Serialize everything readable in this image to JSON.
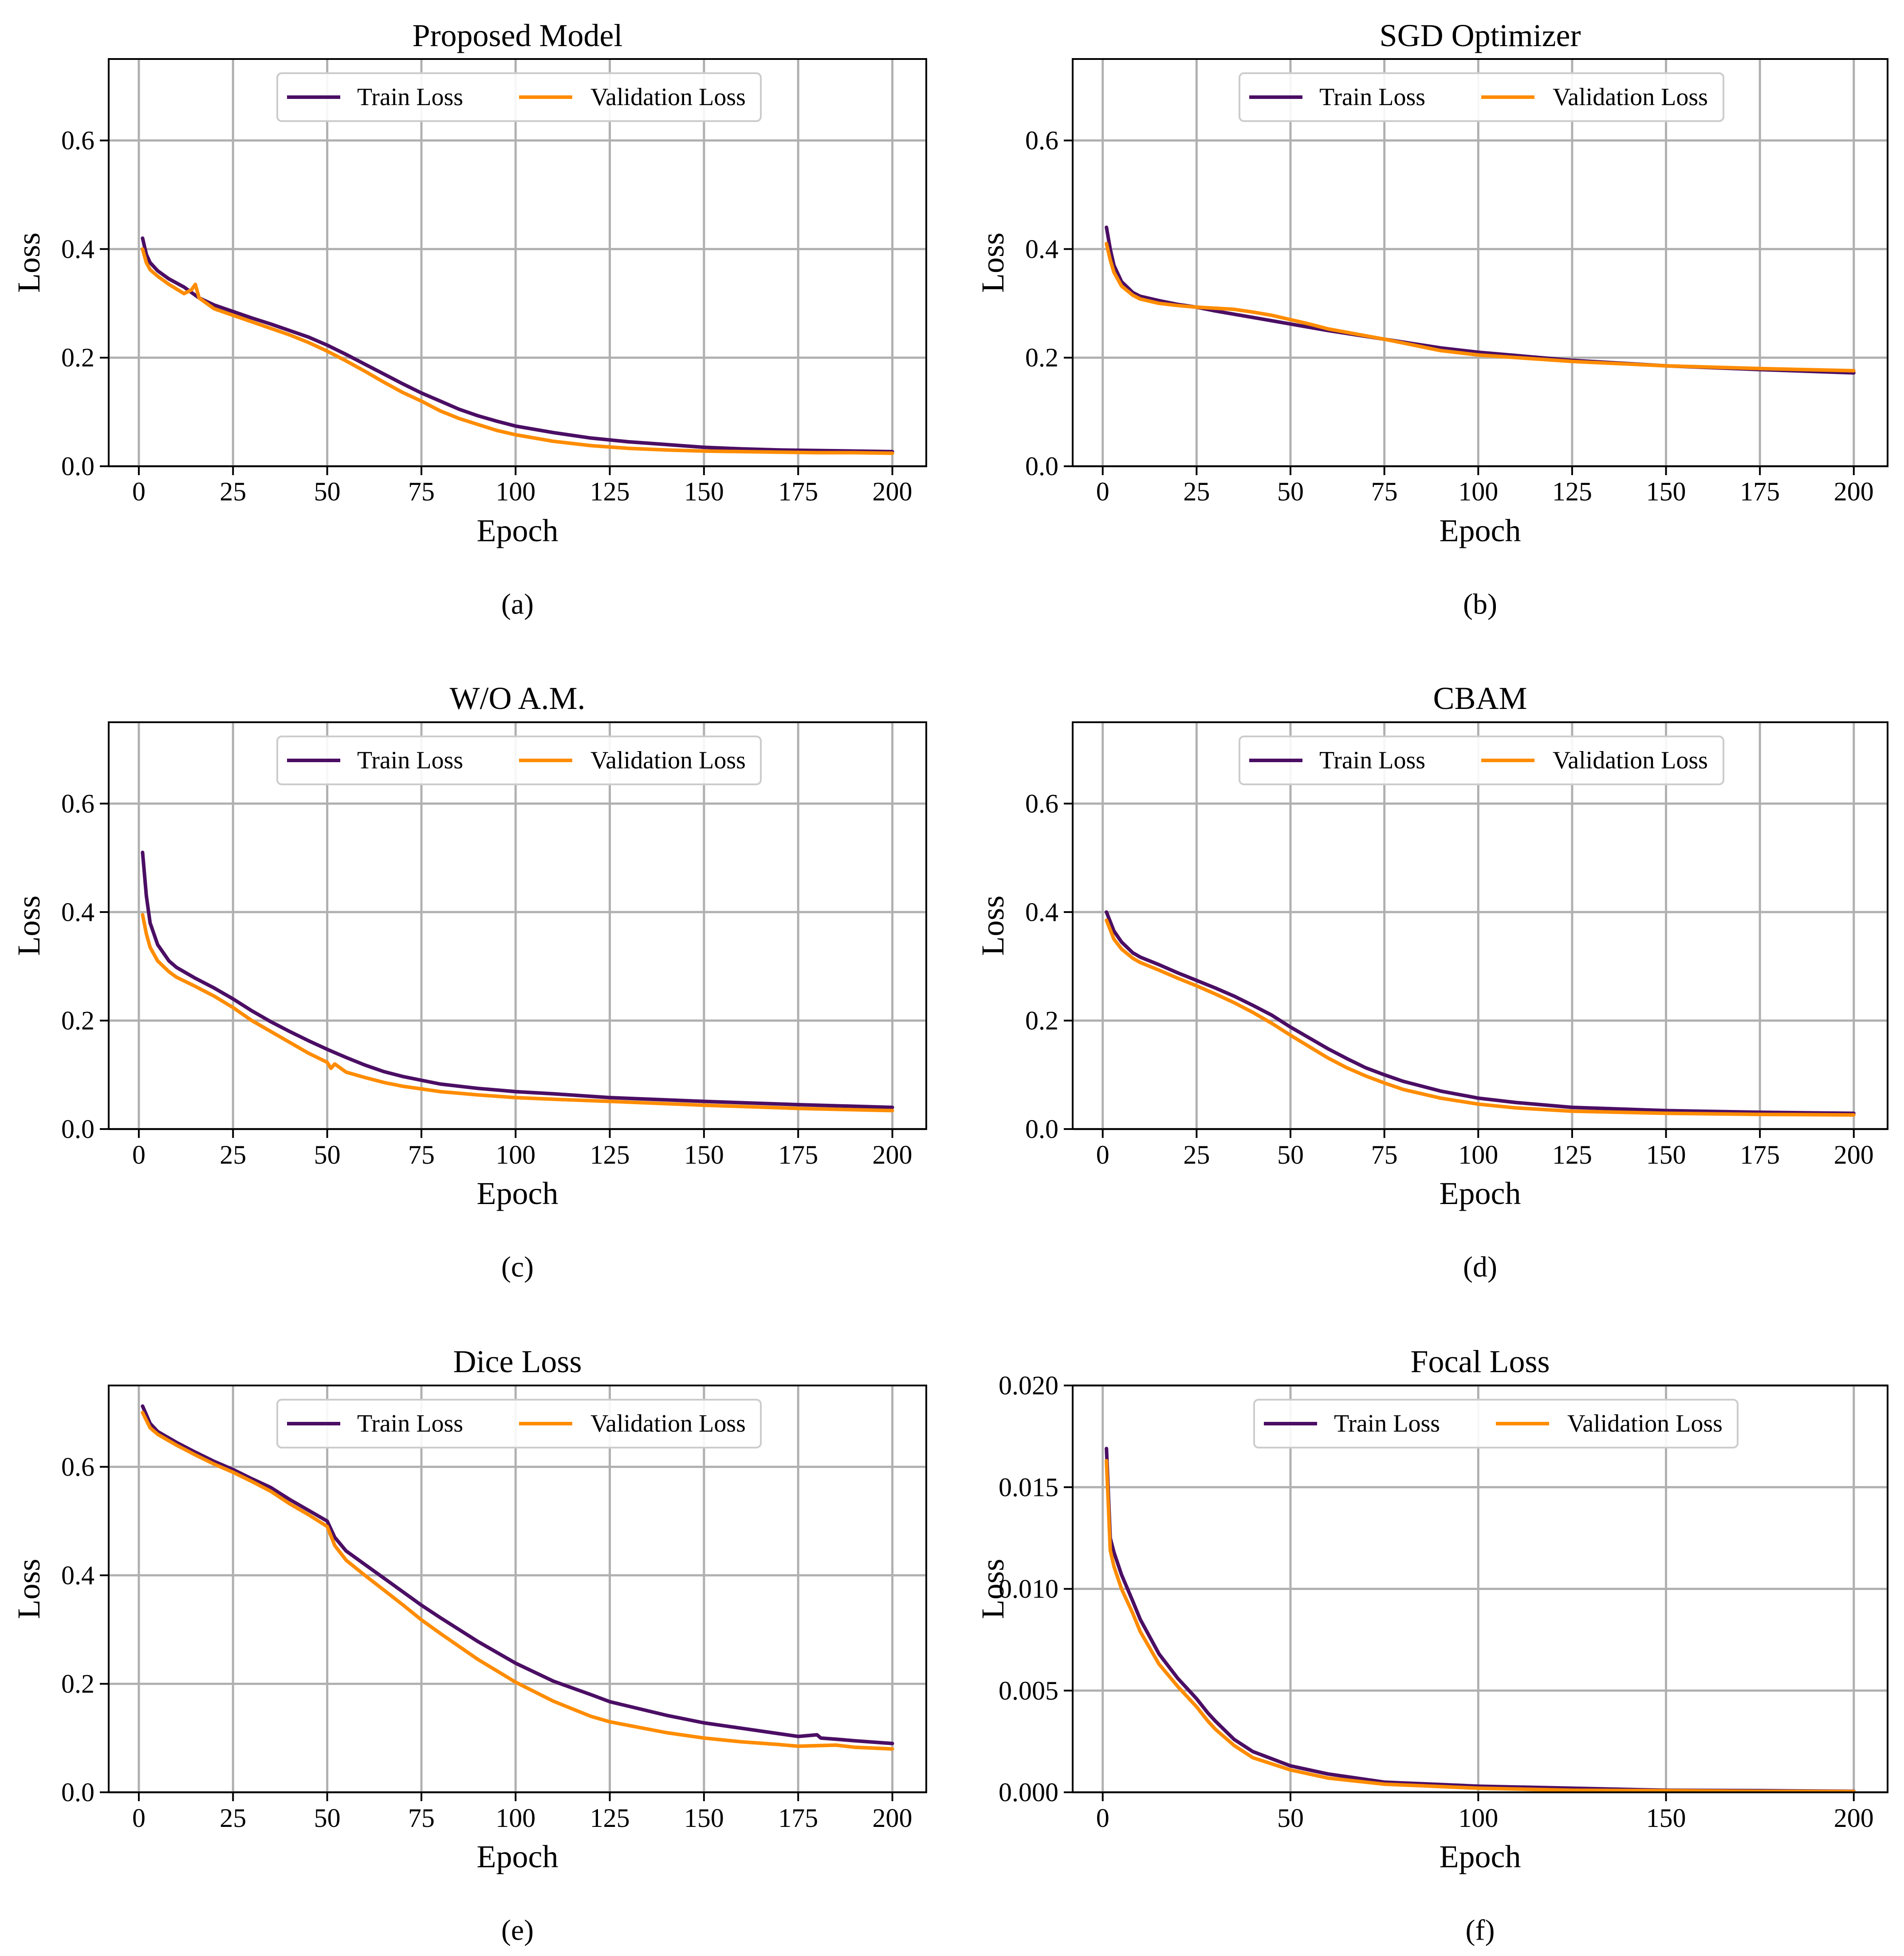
{
  "colors": {
    "train": "#4B0E64",
    "validation": "#FF8C00",
    "grid": "#B0B0B0",
    "axis": "#000000"
  },
  "legend": {
    "train": "Train Loss",
    "validation": "Validation Loss"
  },
  "chart_data": [
    {
      "id": "a",
      "type": "line",
      "title": "Proposed Model",
      "caption": "(a)",
      "xlabel": "Epoch",
      "ylabel": "Loss",
      "xlim": [
        -8,
        209
      ],
      "ylim": [
        0,
        0.75
      ],
      "xticks": [
        0,
        25,
        50,
        75,
        100,
        125,
        150,
        175,
        200
      ],
      "yticks": [
        0.0,
        0.2,
        0.4,
        0.6
      ],
      "ytick_labels": [
        "0.0",
        "0.2",
        "0.4",
        "0.6"
      ],
      "grid": true,
      "legend_position": "upper center",
      "series": [
        {
          "name": "Train Loss",
          "x": [
            1,
            2,
            3,
            5,
            8,
            12,
            16,
            20,
            25,
            30,
            35,
            40,
            45,
            50,
            55,
            60,
            65,
            70,
            75,
            80,
            85,
            90,
            95,
            100,
            110,
            120,
            130,
            140,
            150,
            160,
            170,
            180,
            190,
            200
          ],
          "y": [
            0.42,
            0.39,
            0.375,
            0.36,
            0.345,
            0.33,
            0.31,
            0.297,
            0.285,
            0.273,
            0.262,
            0.25,
            0.238,
            0.223,
            0.206,
            0.188,
            0.17,
            0.152,
            0.135,
            0.12,
            0.105,
            0.093,
            0.083,
            0.074,
            0.062,
            0.052,
            0.045,
            0.04,
            0.035,
            0.032,
            0.03,
            0.029,
            0.028,
            0.027
          ]
        },
        {
          "name": "Validation Loss",
          "x": [
            1,
            2,
            3,
            5,
            8,
            12,
            14,
            15,
            16,
            20,
            25,
            30,
            35,
            40,
            45,
            50,
            55,
            60,
            65,
            70,
            75,
            80,
            85,
            90,
            95,
            100,
            110,
            120,
            130,
            140,
            150,
            160,
            170,
            180,
            190,
            200
          ],
          "y": [
            0.4,
            0.375,
            0.362,
            0.35,
            0.335,
            0.318,
            0.325,
            0.335,
            0.31,
            0.29,
            0.278,
            0.266,
            0.254,
            0.242,
            0.228,
            0.212,
            0.194,
            0.175,
            0.155,
            0.136,
            0.12,
            0.102,
            0.088,
            0.077,
            0.066,
            0.058,
            0.046,
            0.038,
            0.033,
            0.03,
            0.028,
            0.027,
            0.026,
            0.025,
            0.025,
            0.024
          ]
        }
      ]
    },
    {
      "id": "b",
      "type": "line",
      "title": "SGD Optimizer",
      "caption": "(b)",
      "xlabel": "Epoch",
      "ylabel": "Loss",
      "xlim": [
        -8,
        209
      ],
      "ylim": [
        0,
        0.75
      ],
      "xticks": [
        0,
        25,
        50,
        75,
        100,
        125,
        150,
        175,
        200
      ],
      "yticks": [
        0.0,
        0.2,
        0.4,
        0.6
      ],
      "ytick_labels": [
        "0.0",
        "0.2",
        "0.4",
        "0.6"
      ],
      "grid": true,
      "legend_position": "upper center",
      "series": [
        {
          "name": "Train Loss",
          "x": [
            1,
            2,
            3,
            5,
            8,
            10,
            15,
            20,
            25,
            30,
            40,
            50,
            60,
            75,
            90,
            100,
            125,
            150,
            175,
            200
          ],
          "y": [
            0.44,
            0.4,
            0.37,
            0.34,
            0.32,
            0.313,
            0.305,
            0.298,
            0.293,
            0.286,
            0.274,
            0.262,
            0.25,
            0.234,
            0.218,
            0.21,
            0.195,
            0.185,
            0.178,
            0.172
          ]
        },
        {
          "name": "Validation Loss",
          "x": [
            1,
            2,
            3,
            5,
            8,
            10,
            15,
            20,
            25,
            30,
            35,
            40,
            45,
            50,
            55,
            60,
            75,
            90,
            100,
            125,
            150,
            175,
            200
          ],
          "y": [
            0.41,
            0.38,
            0.357,
            0.332,
            0.315,
            0.308,
            0.3,
            0.296,
            0.293,
            0.291,
            0.289,
            0.284,
            0.278,
            0.27,
            0.262,
            0.253,
            0.234,
            0.213,
            0.205,
            0.193,
            0.185,
            0.18,
            0.176
          ]
        }
      ]
    },
    {
      "id": "c",
      "type": "line",
      "title": "W/O A.M.",
      "caption": "(c)",
      "xlabel": "Epoch",
      "ylabel": "Loss",
      "xlim": [
        -8,
        209
      ],
      "ylim": [
        0,
        0.75
      ],
      "xticks": [
        0,
        25,
        50,
        75,
        100,
        125,
        150,
        175,
        200
      ],
      "yticks": [
        0.0,
        0.2,
        0.4,
        0.6
      ],
      "ytick_labels": [
        "0.0",
        "0.2",
        "0.4",
        "0.6"
      ],
      "grid": true,
      "legend_position": "upper center",
      "series": [
        {
          "name": "Train Loss",
          "x": [
            1,
            2,
            3,
            5,
            8,
            10,
            15,
            20,
            25,
            30,
            35,
            40,
            45,
            50,
            55,
            60,
            65,
            70,
            75,
            80,
            90,
            100,
            110,
            125,
            150,
            175,
            200
          ],
          "y": [
            0.51,
            0.43,
            0.38,
            0.34,
            0.31,
            0.298,
            0.278,
            0.26,
            0.24,
            0.218,
            0.198,
            0.18,
            0.163,
            0.147,
            0.132,
            0.118,
            0.106,
            0.097,
            0.09,
            0.083,
            0.075,
            0.069,
            0.065,
            0.058,
            0.051,
            0.045,
            0.04
          ]
        },
        {
          "name": "Validation Loss",
          "x": [
            1,
            2,
            3,
            5,
            8,
            10,
            15,
            20,
            25,
            30,
            35,
            40,
            45,
            50,
            51,
            52,
            55,
            60,
            65,
            70,
            75,
            80,
            90,
            100,
            110,
            125,
            150,
            175,
            200
          ],
          "y": [
            0.395,
            0.36,
            0.335,
            0.31,
            0.29,
            0.28,
            0.263,
            0.245,
            0.224,
            0.2,
            0.18,
            0.16,
            0.14,
            0.123,
            0.112,
            0.12,
            0.105,
            0.095,
            0.086,
            0.079,
            0.074,
            0.069,
            0.063,
            0.058,
            0.055,
            0.051,
            0.044,
            0.038,
            0.034
          ]
        }
      ]
    },
    {
      "id": "d",
      "type": "line",
      "title": "CBAM",
      "caption": "(d)",
      "xlabel": "Epoch",
      "ylabel": "Loss",
      "xlim": [
        -8,
        209
      ],
      "ylim": [
        0,
        0.75
      ],
      "xticks": [
        0,
        25,
        50,
        75,
        100,
        125,
        150,
        175,
        200
      ],
      "yticks": [
        0.0,
        0.2,
        0.4,
        0.6
      ],
      "ytick_labels": [
        "0.0",
        "0.2",
        "0.4",
        "0.6"
      ],
      "grid": true,
      "legend_position": "upper center",
      "series": [
        {
          "name": "Train Loss",
          "x": [
            1,
            3,
            5,
            8,
            10,
            15,
            20,
            25,
            30,
            35,
            40,
            45,
            50,
            55,
            60,
            65,
            70,
            75,
            80,
            90,
            100,
            110,
            125,
            150,
            175,
            200
          ],
          "y": [
            0.4,
            0.365,
            0.345,
            0.325,
            0.317,
            0.303,
            0.288,
            0.274,
            0.26,
            0.245,
            0.228,
            0.21,
            0.188,
            0.168,
            0.148,
            0.13,
            0.113,
            0.1,
            0.088,
            0.07,
            0.057,
            0.049,
            0.04,
            0.034,
            0.031,
            0.029
          ]
        },
        {
          "name": "Validation Loss",
          "x": [
            1,
            3,
            5,
            8,
            10,
            15,
            20,
            25,
            30,
            35,
            40,
            45,
            50,
            55,
            60,
            65,
            70,
            75,
            80,
            90,
            100,
            110,
            125,
            150,
            175,
            200
          ],
          "y": [
            0.385,
            0.35,
            0.332,
            0.315,
            0.307,
            0.293,
            0.278,
            0.264,
            0.249,
            0.233,
            0.215,
            0.195,
            0.173,
            0.152,
            0.131,
            0.113,
            0.098,
            0.085,
            0.073,
            0.057,
            0.046,
            0.039,
            0.033,
            0.029,
            0.027,
            0.026
          ]
        }
      ]
    },
    {
      "id": "e",
      "type": "line",
      "title": "Dice Loss",
      "caption": "(e)",
      "xlabel": "Epoch",
      "ylabel": "Loss",
      "xlim": [
        -8,
        209
      ],
      "ylim": [
        0,
        0.75
      ],
      "xticks": [
        0,
        25,
        50,
        75,
        100,
        125,
        150,
        175,
        200
      ],
      "yticks": [
        0.0,
        0.2,
        0.4,
        0.6
      ],
      "ytick_labels": [
        "0.0",
        "0.2",
        "0.4",
        "0.6"
      ],
      "grid": true,
      "legend_position": "upper center",
      "series": [
        {
          "name": "Train Loss",
          "x": [
            1,
            3,
            5,
            10,
            15,
            20,
            25,
            30,
            35,
            40,
            45,
            50,
            52,
            55,
            60,
            65,
            70,
            75,
            80,
            90,
            100,
            110,
            120,
            125,
            140,
            150,
            160,
            170,
            175,
            180,
            181,
            185,
            190,
            200
          ],
          "y": [
            0.712,
            0.68,
            0.665,
            0.645,
            0.627,
            0.61,
            0.595,
            0.578,
            0.562,
            0.54,
            0.52,
            0.5,
            0.47,
            0.445,
            0.42,
            0.395,
            0.37,
            0.345,
            0.322,
            0.278,
            0.238,
            0.205,
            0.18,
            0.167,
            0.142,
            0.128,
            0.118,
            0.108,
            0.103,
            0.106,
            0.1,
            0.098,
            0.095,
            0.09
          ]
        },
        {
          "name": "Validation Loss",
          "x": [
            1,
            3,
            5,
            10,
            15,
            20,
            25,
            30,
            35,
            40,
            45,
            50,
            52,
            55,
            60,
            65,
            70,
            75,
            80,
            90,
            100,
            110,
            120,
            125,
            140,
            150,
            160,
            170,
            175,
            185,
            190,
            200
          ],
          "y": [
            0.7,
            0.672,
            0.66,
            0.64,
            0.622,
            0.605,
            0.59,
            0.573,
            0.555,
            0.532,
            0.512,
            0.49,
            0.455,
            0.428,
            0.4,
            0.373,
            0.346,
            0.318,
            0.293,
            0.245,
            0.203,
            0.168,
            0.14,
            0.13,
            0.11,
            0.1,
            0.093,
            0.088,
            0.085,
            0.087,
            0.083,
            0.08
          ]
        }
      ]
    },
    {
      "id": "f",
      "type": "line",
      "title": "Focal Loss",
      "caption": "(f)",
      "xlabel": "Epoch",
      "ylabel": "Loss",
      "xlim": [
        -8,
        209
      ],
      "ylim": [
        0,
        0.02
      ],
      "xticks": [
        0,
        50,
        100,
        150,
        200
      ],
      "yticks": [
        0.0,
        0.005,
        0.01,
        0.015,
        0.02
      ],
      "ytick_labels": [
        "0.000",
        "0.005",
        "0.010",
        "0.015",
        "0.020"
      ],
      "grid": true,
      "legend_position": "upper center",
      "series": [
        {
          "name": "Train Loss",
          "x": [
            1,
            2,
            3,
            5,
            8,
            10,
            15,
            20,
            25,
            28,
            30,
            35,
            40,
            50,
            60,
            75,
            100,
            125,
            150,
            175,
            200
          ],
          "y": [
            0.0169,
            0.0125,
            0.0118,
            0.0107,
            0.0094,
            0.0085,
            0.0068,
            0.0056,
            0.0046,
            0.0039,
            0.0035,
            0.0026,
            0.002,
            0.0013,
            0.0009,
            0.0005,
            0.0003,
            0.0002,
            0.0001,
            8e-05,
            5e-05
          ]
        },
        {
          "name": "Validation Loss",
          "x": [
            1,
            2,
            3,
            5,
            8,
            10,
            15,
            20,
            25,
            28,
            30,
            35,
            40,
            50,
            60,
            75,
            100,
            125,
            150,
            175,
            200
          ],
          "y": [
            0.0163,
            0.0119,
            0.0111,
            0.01,
            0.0088,
            0.0079,
            0.0063,
            0.0052,
            0.0042,
            0.0035,
            0.0031,
            0.0023,
            0.0017,
            0.0011,
            0.0007,
            0.0004,
            0.0002,
            0.0001,
            8e-05,
            5e-05,
            4e-05
          ]
        }
      ]
    }
  ]
}
